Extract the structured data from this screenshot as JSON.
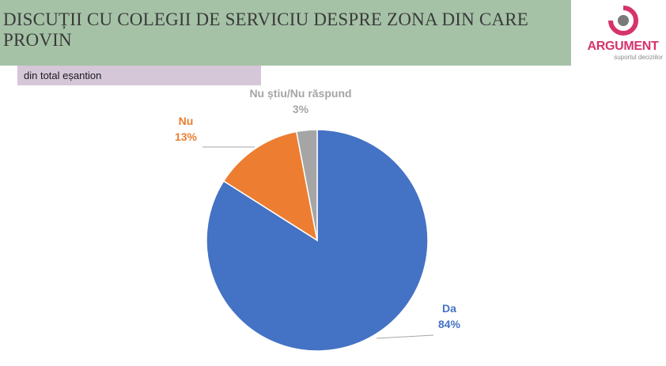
{
  "header": {
    "title": "DISCUȚII CU COLEGII DE SERVICIU DESPRE ZONA DIN CARE PROVIN",
    "subtitle": "din total eșantion"
  },
  "logo": {
    "name": "ARGUMENT",
    "tagline": "suportul deciziilor",
    "color": "#d6336c"
  },
  "chart_data": {
    "type": "pie",
    "start_angle_deg": 0,
    "direction": "clockwise",
    "slices": [
      {
        "label": "Da",
        "value": 84,
        "display": "84%",
        "color": "#4472c4"
      },
      {
        "label": "Nu",
        "value": 13,
        "display": "13%",
        "color": "#ed7d31"
      },
      {
        "label": "Nu știu/Nu răspund",
        "value": 3,
        "display": "3%",
        "color": "#a5a5a5"
      }
    ]
  }
}
